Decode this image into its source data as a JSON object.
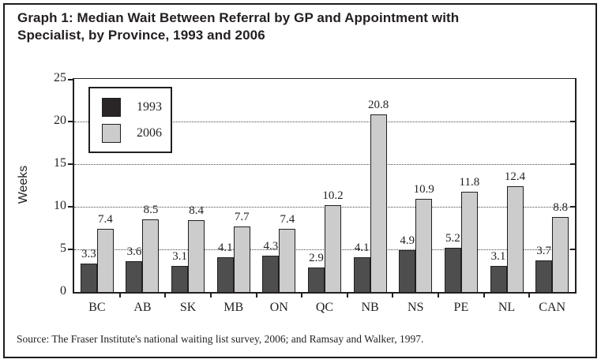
{
  "figure": {
    "title_line1": "Graph 1: Median Wait Between Referral by GP and Appointment with",
    "title_line2": "Specialist, by Province, 1993 and 2006",
    "source": "Source: The Fraser Institute's national waiting list survey, 2006; and Ramsay and Walker, 1997."
  },
  "chart_data": {
    "type": "bar",
    "title": "Graph 1: Median Wait Between Referral by GP and Appointment with Specialist, by Province, 1993 and 2006",
    "categories": [
      "BC",
      "AB",
      "SK",
      "MB",
      "ON",
      "QC",
      "NB",
      "NS",
      "PE",
      "NL",
      "CAN"
    ],
    "series": [
      {
        "name": "1993",
        "color": "#4e4e4e",
        "legend_color": "#2a2526",
        "values": [
          3.3,
          3.6,
          3.1,
          4.1,
          4.3,
          2.9,
          4.1,
          4.9,
          5.2,
          3.1,
          3.7
        ]
      },
      {
        "name": "2006",
        "color": "#cccccc",
        "legend_color": "#cccccc",
        "values": [
          7.4,
          8.5,
          8.4,
          7.7,
          7.4,
          10.2,
          20.8,
          10.9,
          11.8,
          12.4,
          8.8
        ]
      }
    ],
    "xlabel": "",
    "ylabel": "Weeks",
    "ylim": [
      0,
      25
    ],
    "yticks": [
      0,
      5,
      10,
      15,
      20,
      25
    ],
    "grid": "horizontal dotted lines at 5, 10, 15, 20",
    "legend_position": "top-left inside plot area",
    "value_labels": true,
    "frame_color": "#1c1c1c",
    "text_color": "#231f20"
  }
}
